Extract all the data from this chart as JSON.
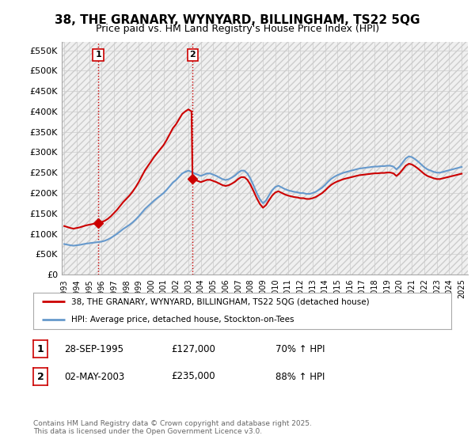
{
  "title": "38, THE GRANARY, WYNYARD, BILLINGHAM, TS22 5QG",
  "subtitle": "Price paid vs. HM Land Registry's House Price Index (HPI)",
  "ylabel_ticks": [
    "£0",
    "£50K",
    "£100K",
    "£150K",
    "£200K",
    "£250K",
    "£300K",
    "£350K",
    "£400K",
    "£450K",
    "£500K",
    "£550K"
  ],
  "ytick_values": [
    0,
    50000,
    100000,
    150000,
    200000,
    250000,
    300000,
    350000,
    400000,
    450000,
    500000,
    550000
  ],
  "ylim": [
    0,
    570000
  ],
  "xlim_start": 1992.8,
  "xlim_end": 2025.5,
  "xtick_years": [
    1993,
    1994,
    1995,
    1996,
    1997,
    1998,
    1999,
    2000,
    2001,
    2002,
    2003,
    2004,
    2005,
    2006,
    2007,
    2008,
    2009,
    2010,
    2011,
    2012,
    2013,
    2014,
    2015,
    2016,
    2017,
    2018,
    2019,
    2020,
    2021,
    2022,
    2023,
    2024,
    2025
  ],
  "transaction1_x": 1995.74,
  "transaction1_y": 127000,
  "transaction2_x": 2003.33,
  "transaction2_y": 235000,
  "transaction1_label": "1",
  "transaction2_label": "2",
  "vline1_x": 1995.74,
  "vline2_x": 2003.33,
  "red_line_color": "#cc0000",
  "blue_line_color": "#6699cc",
  "marker_color": "#cc0000",
  "vline_color": "#cc0000",
  "legend_label_red": "38, THE GRANARY, WYNYARD, BILLINGHAM, TS22 5QG (detached house)",
  "legend_label_blue": "HPI: Average price, detached house, Stockton-on-Tees",
  "table_entries": [
    {
      "num": "1",
      "date": "28-SEP-1995",
      "price": "£127,000",
      "hpi": "70% ↑ HPI"
    },
    {
      "num": "2",
      "date": "02-MAY-2003",
      "price": "£235,000",
      "hpi": "88% ↑ HPI"
    }
  ],
  "footnote": "Contains HM Land Registry data © Crown copyright and database right 2025.\nThis data is licensed under the Open Government Licence v3.0.",
  "background_color": "#ffffff",
  "plot_bg_color": "#ffffff",
  "grid_color": "#cccccc"
}
